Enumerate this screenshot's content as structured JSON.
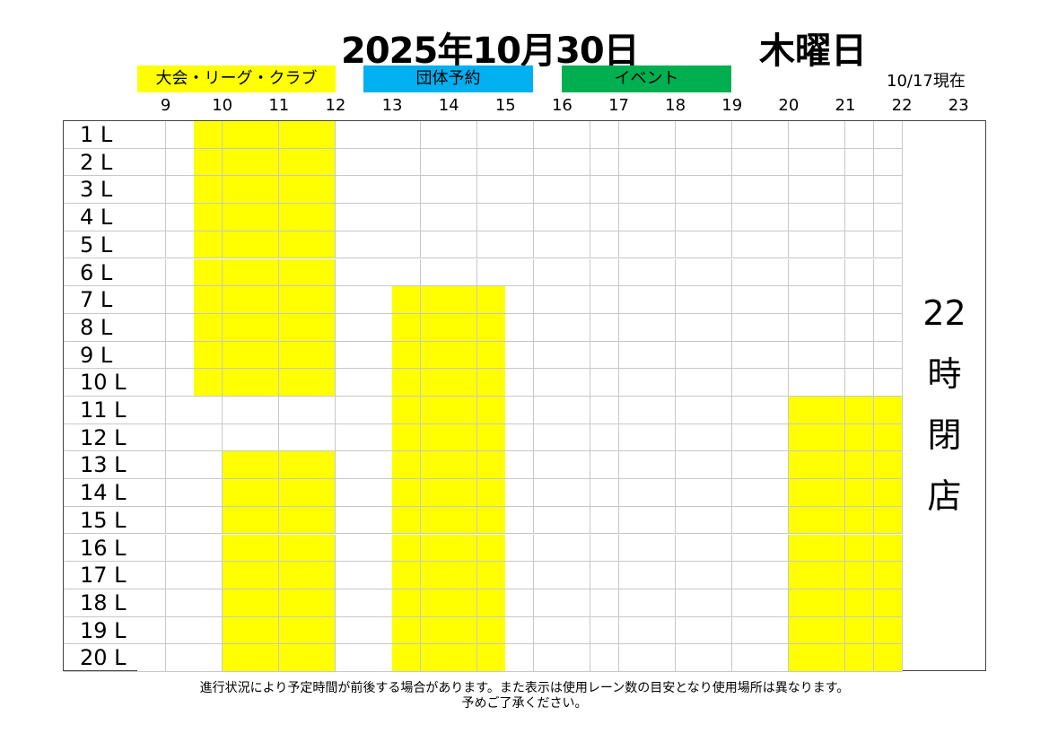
{
  "header": {
    "date": "2025年10月30日",
    "weekday": "木曜日",
    "as_of": "10/17現在"
  },
  "legend": [
    {
      "label": "大会・リーグ・クラブ",
      "color": "#ffff00"
    },
    {
      "label": "団体予約",
      "color": "#00b0f0"
    },
    {
      "label": "イベント",
      "color": "#00b050"
    }
  ],
  "hours": [
    "9",
    "10",
    "11",
    "12",
    "13",
    "14",
    "15",
    "16",
    "17",
    "18",
    "19",
    "20",
    "21",
    "22",
    "23"
  ],
  "lanes": [
    "1 L",
    "2 L",
    "3 L",
    "4 L",
    "5 L",
    "6 L",
    "7 L",
    "8 L",
    "9 L",
    "10 L",
    "11 L",
    "12 L",
    "13 L",
    "14 L",
    "15 L",
    "16 L",
    "17 L",
    "18 L",
    "19 L",
    "20 L"
  ],
  "grid_start": "8:30",
  "grid_end": "22:00",
  "bookings": [
    {
      "type": "大会・リーグ・クラブ",
      "lanes": [
        1,
        10
      ],
      "start": "9:30",
      "end": "12:00",
      "color": "#ffff00"
    },
    {
      "type": "大会・リーグ・クラブ",
      "lanes": [
        13,
        20
      ],
      "start": "10:00",
      "end": "12:00",
      "color": "#ffff00"
    },
    {
      "type": "大会・リーグ・クラブ",
      "lanes": [
        7,
        20
      ],
      "start": "13:00",
      "end": "15:00",
      "color": "#ffff00"
    },
    {
      "type": "大会・リーグ・クラブ",
      "lanes": [
        11,
        20
      ],
      "start": "20:00",
      "end": "22:00",
      "color": "#ffff00"
    }
  ],
  "closed_chars": [
    "22",
    "時",
    "閉",
    "店"
  ],
  "notes": [
    "進行状況により予定時間が前後する場合があります。また表示は使用レーン数の目安となり使用場所は異なります。",
    "予めご了承ください。"
  ]
}
